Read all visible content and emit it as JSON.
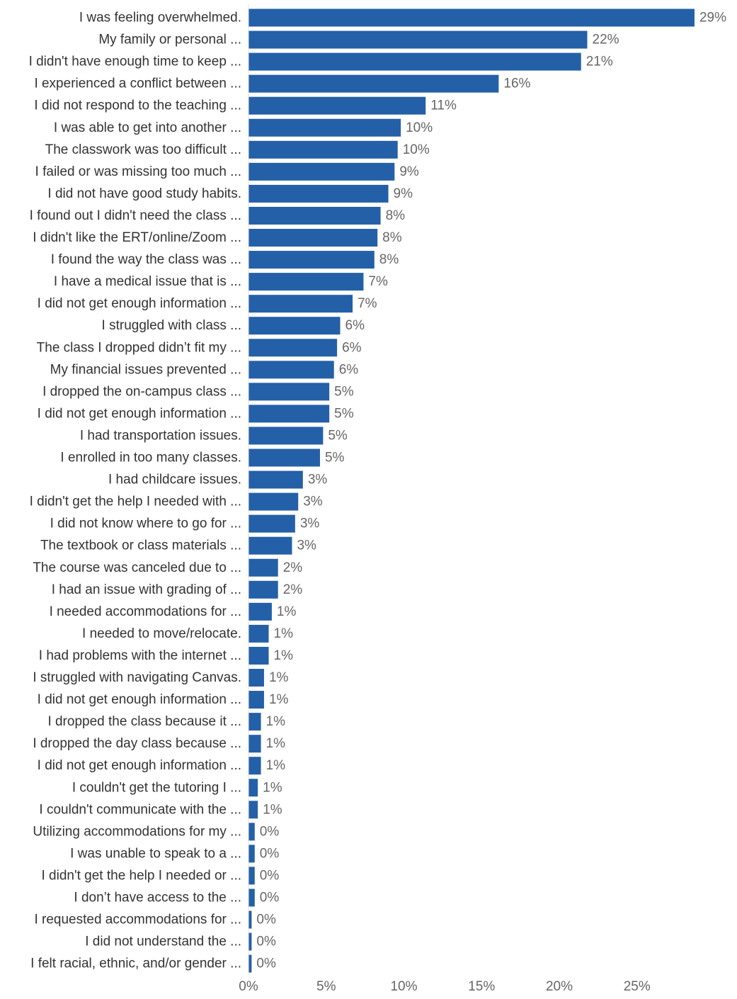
{
  "colors": {
    "bar": "#2460a7",
    "label_text": "#333333",
    "value_text": "#666666",
    "axis_line": "#e0e0e0"
  },
  "chart_data": {
    "type": "bar",
    "orientation": "horizontal",
    "title": "",
    "xlabel": "",
    "ylabel": "",
    "xlim": [
      0,
      28.8
    ],
    "x_ticks": [
      0,
      5,
      10,
      15,
      20,
      25
    ],
    "x_tick_labels": [
      "0%",
      "5%",
      "10%",
      "15%",
      "20%",
      "25%"
    ],
    "grid": false,
    "categories": [
      "I was feeling overwhelmed.",
      "My family or personal ...",
      "I didn't have enough time to keep ...",
      "I experienced a conflict between ...",
      "I did not respond to the teaching ...",
      "I was able to get into another ...",
      "The classwork was too difficult ...",
      "I failed or was missing too much ...",
      "I did not have good study habits.",
      "I found out I didn't need the class ...",
      "I didn't like the ERT/online/Zoom ...",
      "I found the way the class was ...",
      "I have a medical issue that is ...",
      "I did not get enough information ...",
      "I struggled with class ...",
      "The class I dropped didn’t fit my ...",
      "My financial issues prevented ...",
      "I dropped the on-campus class ...",
      "I did not get enough information ...",
      "I had transportation issues.",
      "I enrolled in too many classes.",
      "I had childcare issues.",
      "I didn't get the help I needed with ...",
      "I did not know where to go for ...",
      "The textbook or class materials ...",
      "The course was canceled due to ...",
      "I had an issue with grading of ...",
      "I needed accommodations for ...",
      "I needed to move/relocate.",
      "I had problems with the internet ...",
      "I struggled with navigating Canvas.",
      "I did not get enough information ...",
      "I dropped the class because it ...",
      "I dropped the day class because ...",
      "I did not get enough information ...",
      "I couldn't get the tutoring I ...",
      "I couldn't communicate with the ...",
      "Utilizing accommodations for my ...",
      "I was unable to speak to a ...",
      "I didn't get the help I needed or ...",
      "I don’t have access to the ...",
      "I requested accommodations for ...",
      "I did not understand the ...",
      "I felt racial, ethnic, and/or gender ..."
    ],
    "values": [
      28.7,
      21.8,
      21.4,
      16.1,
      11.4,
      9.8,
      9.6,
      9.4,
      9.0,
      8.5,
      8.3,
      8.1,
      7.4,
      6.7,
      5.9,
      5.7,
      5.5,
      5.2,
      5.2,
      4.8,
      4.6,
      3.5,
      3.2,
      3.0,
      2.8,
      1.9,
      1.9,
      1.5,
      1.3,
      1.3,
      1.0,
      1.0,
      0.8,
      0.8,
      0.8,
      0.6,
      0.6,
      0.4,
      0.4,
      0.4,
      0.4,
      0.2,
      0.2,
      0.2
    ],
    "value_labels": [
      "29%",
      "22%",
      "21%",
      "16%",
      "11%",
      "10%",
      "10%",
      "9%",
      "9%",
      "8%",
      "8%",
      "8%",
      "7%",
      "7%",
      "6%",
      "6%",
      "6%",
      "5%",
      "5%",
      "5%",
      "5%",
      "3%",
      "3%",
      "3%",
      "3%",
      "2%",
      "2%",
      "1%",
      "1%",
      "1%",
      "1%",
      "1%",
      "1%",
      "1%",
      "1%",
      "1%",
      "1%",
      "0%",
      "0%",
      "0%",
      "0%",
      "0%",
      "0%",
      "0%"
    ]
  }
}
